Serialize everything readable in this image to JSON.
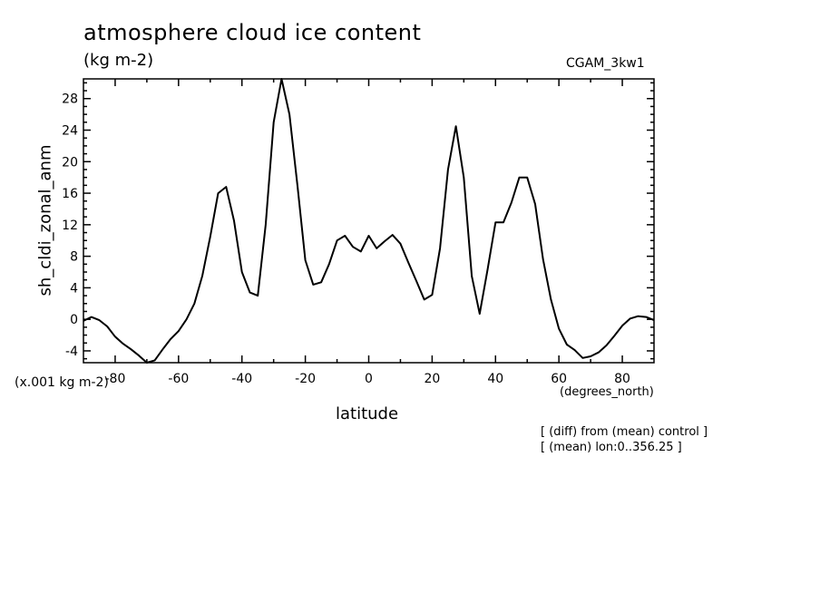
{
  "chart_data": {
    "type": "line",
    "title": "atmosphere cloud ice content",
    "units": "(kg m-2)",
    "run_label": "CGAM_3kw1",
    "ylabel": "sh_cldi_zonal_anm",
    "xlabel": "latitude",
    "x_units": "(degrees_north)",
    "y_scale_note": "(x.001 kg m-2)",
    "notes": [
      "[ (diff) from (mean) control ]",
      "[ (mean) lon:0..356.25 ]"
    ],
    "xlim": [
      -90,
      90
    ],
    "ylim": [
      -5.5,
      30.5
    ],
    "x_ticks": [
      -80,
      -60,
      -40,
      -20,
      0,
      20,
      40,
      60,
      80
    ],
    "y_ticks": [
      -4,
      0,
      4,
      8,
      12,
      16,
      20,
      24,
      28
    ],
    "grid": false,
    "series": [
      {
        "x": [
          -90,
          -87.5,
          -85,
          -82.5,
          -80,
          -77.5,
          -75,
          -72.5,
          -70,
          -67.5,
          -65,
          -62.5,
          -60,
          -57.5,
          -55,
          -52.5,
          -50,
          -47.5,
          -45,
          -42.5,
          -40,
          -37.5,
          -35,
          -32.5,
          -30,
          -27.5,
          -25,
          -22.5,
          -20,
          -17.5,
          -15,
          -12.5,
          -10,
          -7.5,
          -5,
          -2.5,
          0,
          2.5,
          5,
          7.5,
          10,
          12.5,
          15,
          17.5,
          20,
          22.5,
          25,
          27.5,
          30,
          32.5,
          35,
          37.5,
          40,
          42.5,
          45,
          47.5,
          50,
          52.5,
          55,
          57.5,
          60,
          62.5,
          65,
          67.5,
          70,
          72.5,
          75,
          77.5,
          80,
          82.5,
          85,
          87.5,
          90
        ],
        "values": [
          -0.2,
          0.3,
          -0.1,
          -0.9,
          -2.2,
          -3.1,
          -3.8,
          -4.6,
          -5.6,
          -5.2,
          -3.8,
          -2.5,
          -1.5,
          0,
          2,
          5.5,
          10.5,
          16,
          16.8,
          12.5,
          6,
          3.4,
          3,
          12,
          25,
          30.5,
          26,
          17,
          7.5,
          4.4,
          4.7,
          7,
          10,
          10.6,
          9.2,
          8.6,
          10.6,
          9,
          9.9,
          10.7,
          9.6,
          7.2,
          4.9,
          2.5,
          3.1,
          9,
          19,
          24.5,
          18,
          5.5,
          0.7,
          6.3,
          12.3,
          12.3,
          14.8,
          18,
          18,
          14.6,
          7.6,
          2.5,
          -1.2,
          -3.2,
          -3.9,
          -4.9,
          -4.7,
          -4.2,
          -3.3,
          -2.1,
          -0.8,
          0.1,
          0.4,
          0.3,
          -0.1
        ]
      }
    ]
  }
}
